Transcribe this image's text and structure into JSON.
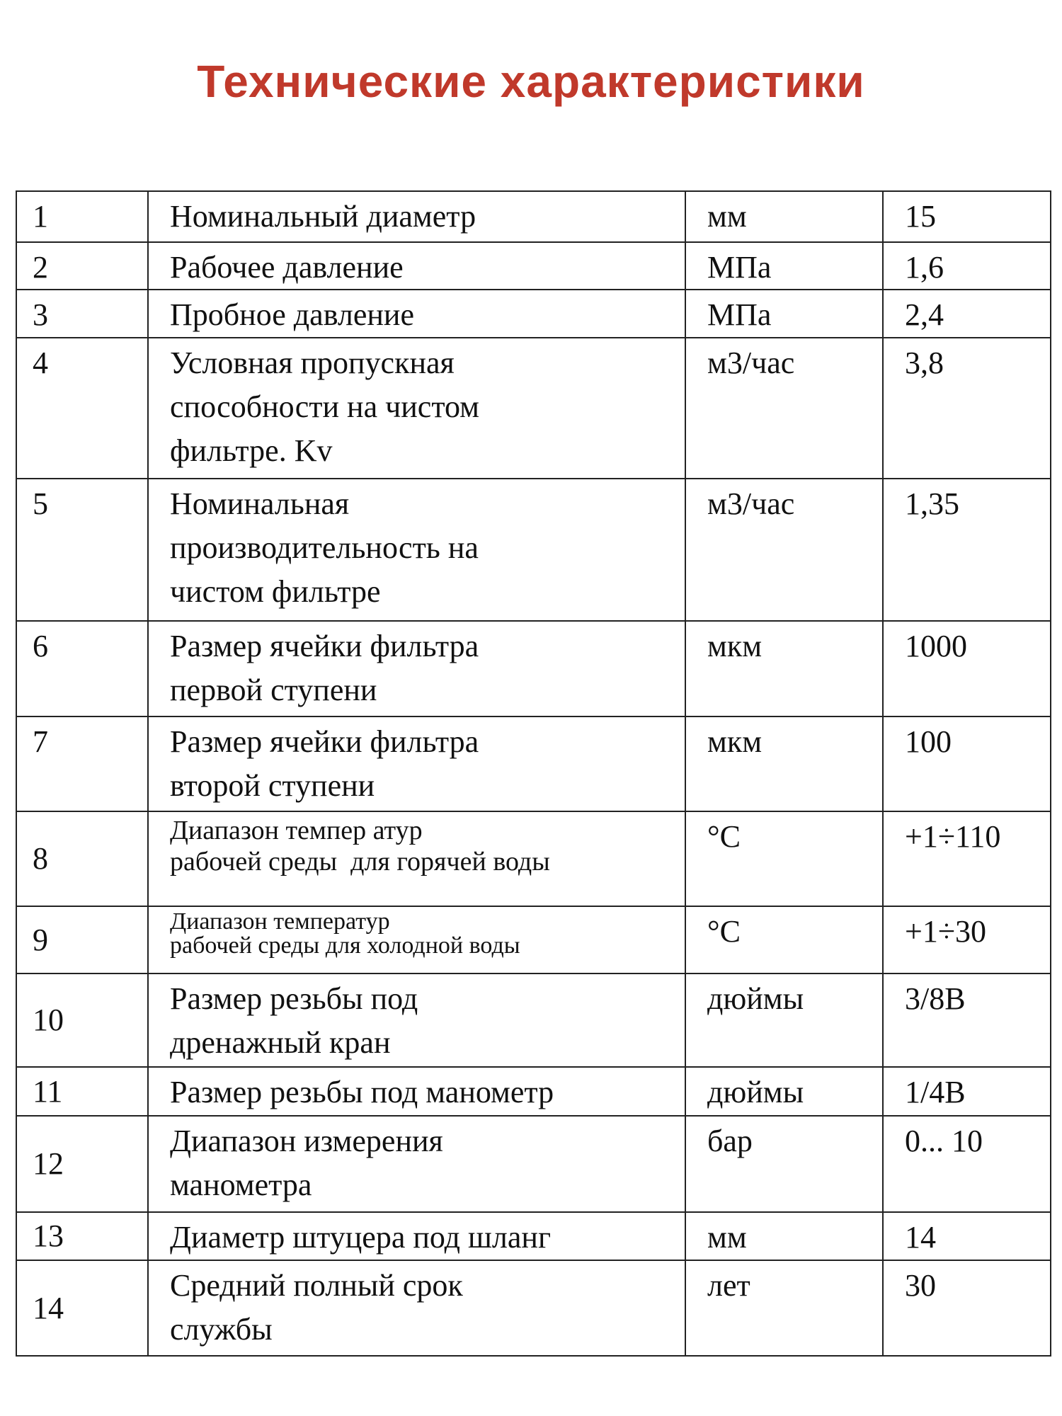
{
  "header": {
    "title": "Технические характеристики"
  },
  "table": {
    "rows": [
      {
        "num": "1",
        "name": [
          "Номинальный диаметр"
        ],
        "unit": "мм",
        "value": "15"
      },
      {
        "num": "2",
        "name": [
          "Рабочее давление"
        ],
        "unit": "МПа",
        "value": "1,6"
      },
      {
        "num": "3",
        "name": [
          "Пробное давление"
        ],
        "unit": "МПа",
        "value": "2,4"
      },
      {
        "num": "4",
        "name": [
          "Условная пропускная",
          "способности на чистом",
          "фильтре. Kv"
        ],
        "unit": "м3/час",
        "value": "3,8"
      },
      {
        "num": "5",
        "name": [
          "Номинальная",
          "производительность на",
          "чистом фильтре"
        ],
        "unit": "м3/час",
        "value": "1,35"
      },
      {
        "num": "6",
        "name": [
          "Размер ячейки фильтра",
          "первой ступени"
        ],
        "unit": "мкм",
        "value": "1000"
      },
      {
        "num": "7",
        "name": [
          "Размер ячейки фильтра",
          "второй ступени"
        ],
        "unit": "мкм",
        "value": "100"
      },
      {
        "num": "8",
        "name": [
          "Диапазон темпер атур",
          "рабочей среды  для горячей воды"
        ],
        "unit": "°С",
        "value": "+1÷110"
      },
      {
        "num": "9",
        "name": [
          "Диапазон температур",
          "рабочей среды для холодной воды"
        ],
        "unit": "°С",
        "value": "+1÷30"
      },
      {
        "num": "10",
        "name": [
          "Размер резьбы под",
          "дренажный кран"
        ],
        "unit": "дюймы",
        "value": "3/8В"
      },
      {
        "num": "11",
        "name": [
          "Размер резьбы под манометр"
        ],
        "unit": "дюймы",
        "value": "1/4В"
      },
      {
        "num": "12",
        "name": [
          "Диапазон измерения",
          "манометра"
        ],
        "unit": "бар",
        "value": "0... 10"
      },
      {
        "num": "13",
        "name": [
          "Диаметр штуцера под шланг"
        ],
        "unit": "мм",
        "value": "14"
      },
      {
        "num": "14",
        "name": [
          "Средний полный срок",
          "службы"
        ],
        "unit": "лет",
        "value": "30"
      }
    ]
  }
}
